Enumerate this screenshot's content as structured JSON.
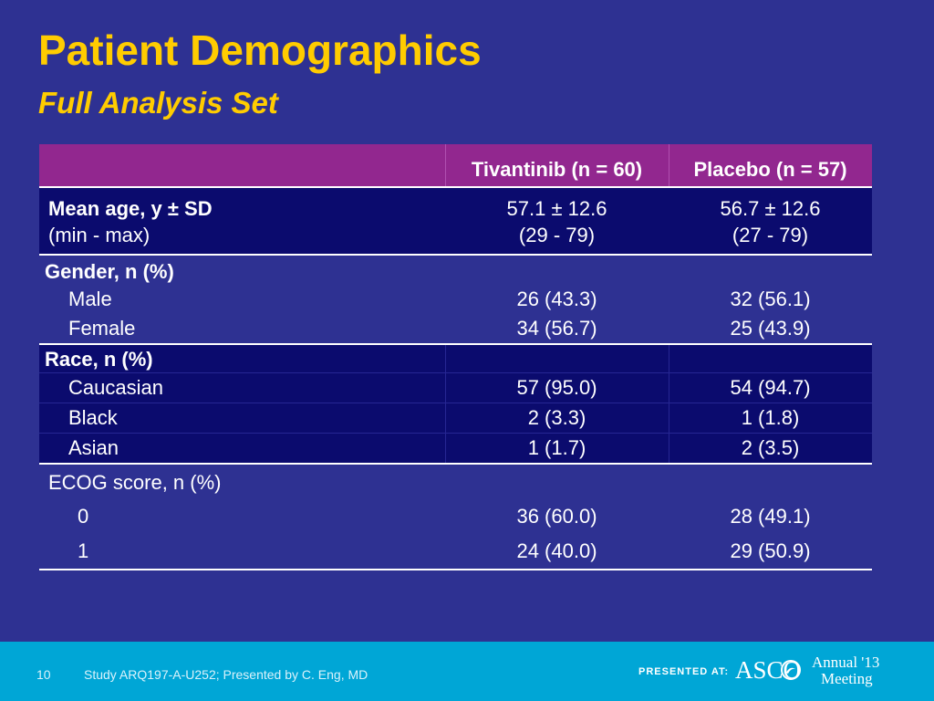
{
  "slide": {
    "title": "Patient Demographics",
    "subtitle": "Full Analysis Set"
  },
  "table": {
    "headers": [
      "",
      "Tivantinib (n = 60)",
      "Placebo (n = 57)"
    ],
    "age": {
      "label_bold": "Mean age, y ± SD",
      "label_sub": "(min - max)",
      "tiv_mean": "57.1 ± 12.6",
      "tiv_range": "(29 - 79)",
      "pla_mean": "56.7 ± 12.6",
      "pla_range": "(27 - 79)"
    },
    "gender": {
      "label": "Gender, n (%)",
      "rows": [
        {
          "label": "Male",
          "tiv": "26 (43.3)",
          "pla": "32 (56.1)"
        },
        {
          "label": "Female",
          "tiv": "34 (56.7)",
          "pla": "25 (43.9)"
        }
      ]
    },
    "race": {
      "label": "Race, n (%)",
      "rows": [
        {
          "label": "Caucasian",
          "tiv": "57 (95.0)",
          "pla": "54 (94.7)"
        },
        {
          "label": "Black",
          "tiv": "2 (3.3)",
          "pla": "1 (1.8)"
        },
        {
          "label": "Asian",
          "tiv": "1 (1.7)",
          "pla": "2 (3.5)"
        }
      ]
    },
    "ecog": {
      "label": "ECOG score, n (%)",
      "rows": [
        {
          "label": "0",
          "tiv": "36 (60.0)",
          "pla": "28 (49.1)"
        },
        {
          "label": "1",
          "tiv": "24 (40.0)",
          "pla": "29 (50.9)"
        }
      ]
    }
  },
  "footer": {
    "page_number": "10",
    "study_text": "Study ARQ197-A-U252; Presented by C. Eng, MD",
    "presented_at": "PRESENTED AT:",
    "asco_logo": "ASCO",
    "meeting_line1": "Annual '13",
    "meeting_line2": "Meeting",
    "accent_color": "#00a6d6"
  },
  "colors": {
    "background": "#2e3192",
    "title": "#ffcc00",
    "header_fill": "#92278f",
    "dark_row_fill": "#0b0b6e"
  }
}
